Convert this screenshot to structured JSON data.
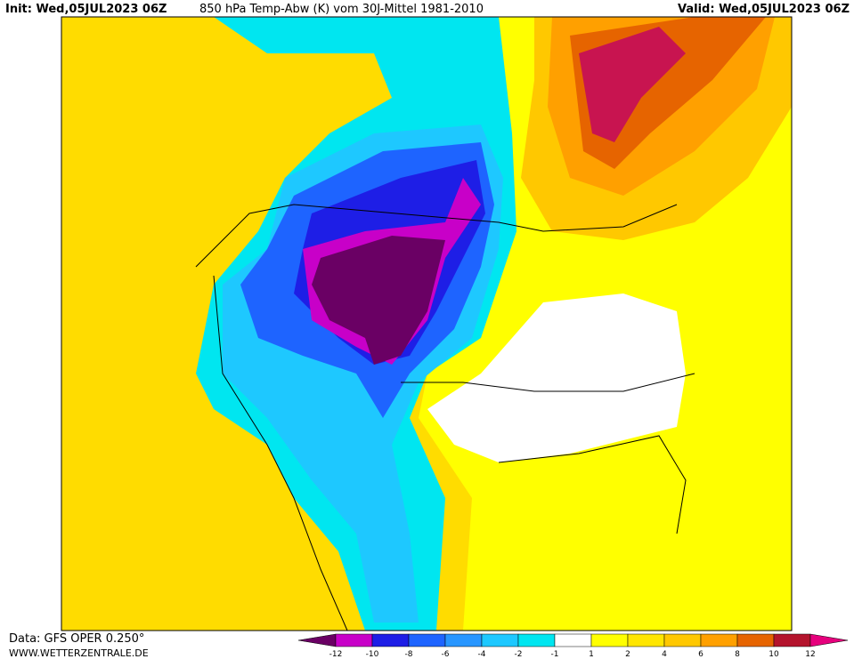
{
  "header": {
    "init": "Init: Wed,05JUL2023 06Z",
    "title": "850 hPa Temp-Abw (K) vom 30J-Mittel 1981-2010",
    "valid": "Valid: Wed,05JUL2023 06Z"
  },
  "footer": {
    "data": "Data: GFS OPER 0.250°",
    "site": "WWW.WETTERZENTRALE.DE"
  },
  "colorbar": {
    "ticks": [
      -12,
      -10,
      -8,
      -6,
      -4,
      -2,
      -1,
      1,
      2,
      4,
      6,
      8,
      10,
      12
    ],
    "colors": [
      "#6a0064",
      "#c800c8",
      "#1e1ee6",
      "#1e64ff",
      "#2896ff",
      "#1ec8ff",
      "#00e6f0",
      "#ffffff",
      "#ffff00",
      "#ffe600",
      "#ffc800",
      "#ffa000",
      "#e66400",
      "#b4142d",
      "#e6007d"
    ]
  }
}
